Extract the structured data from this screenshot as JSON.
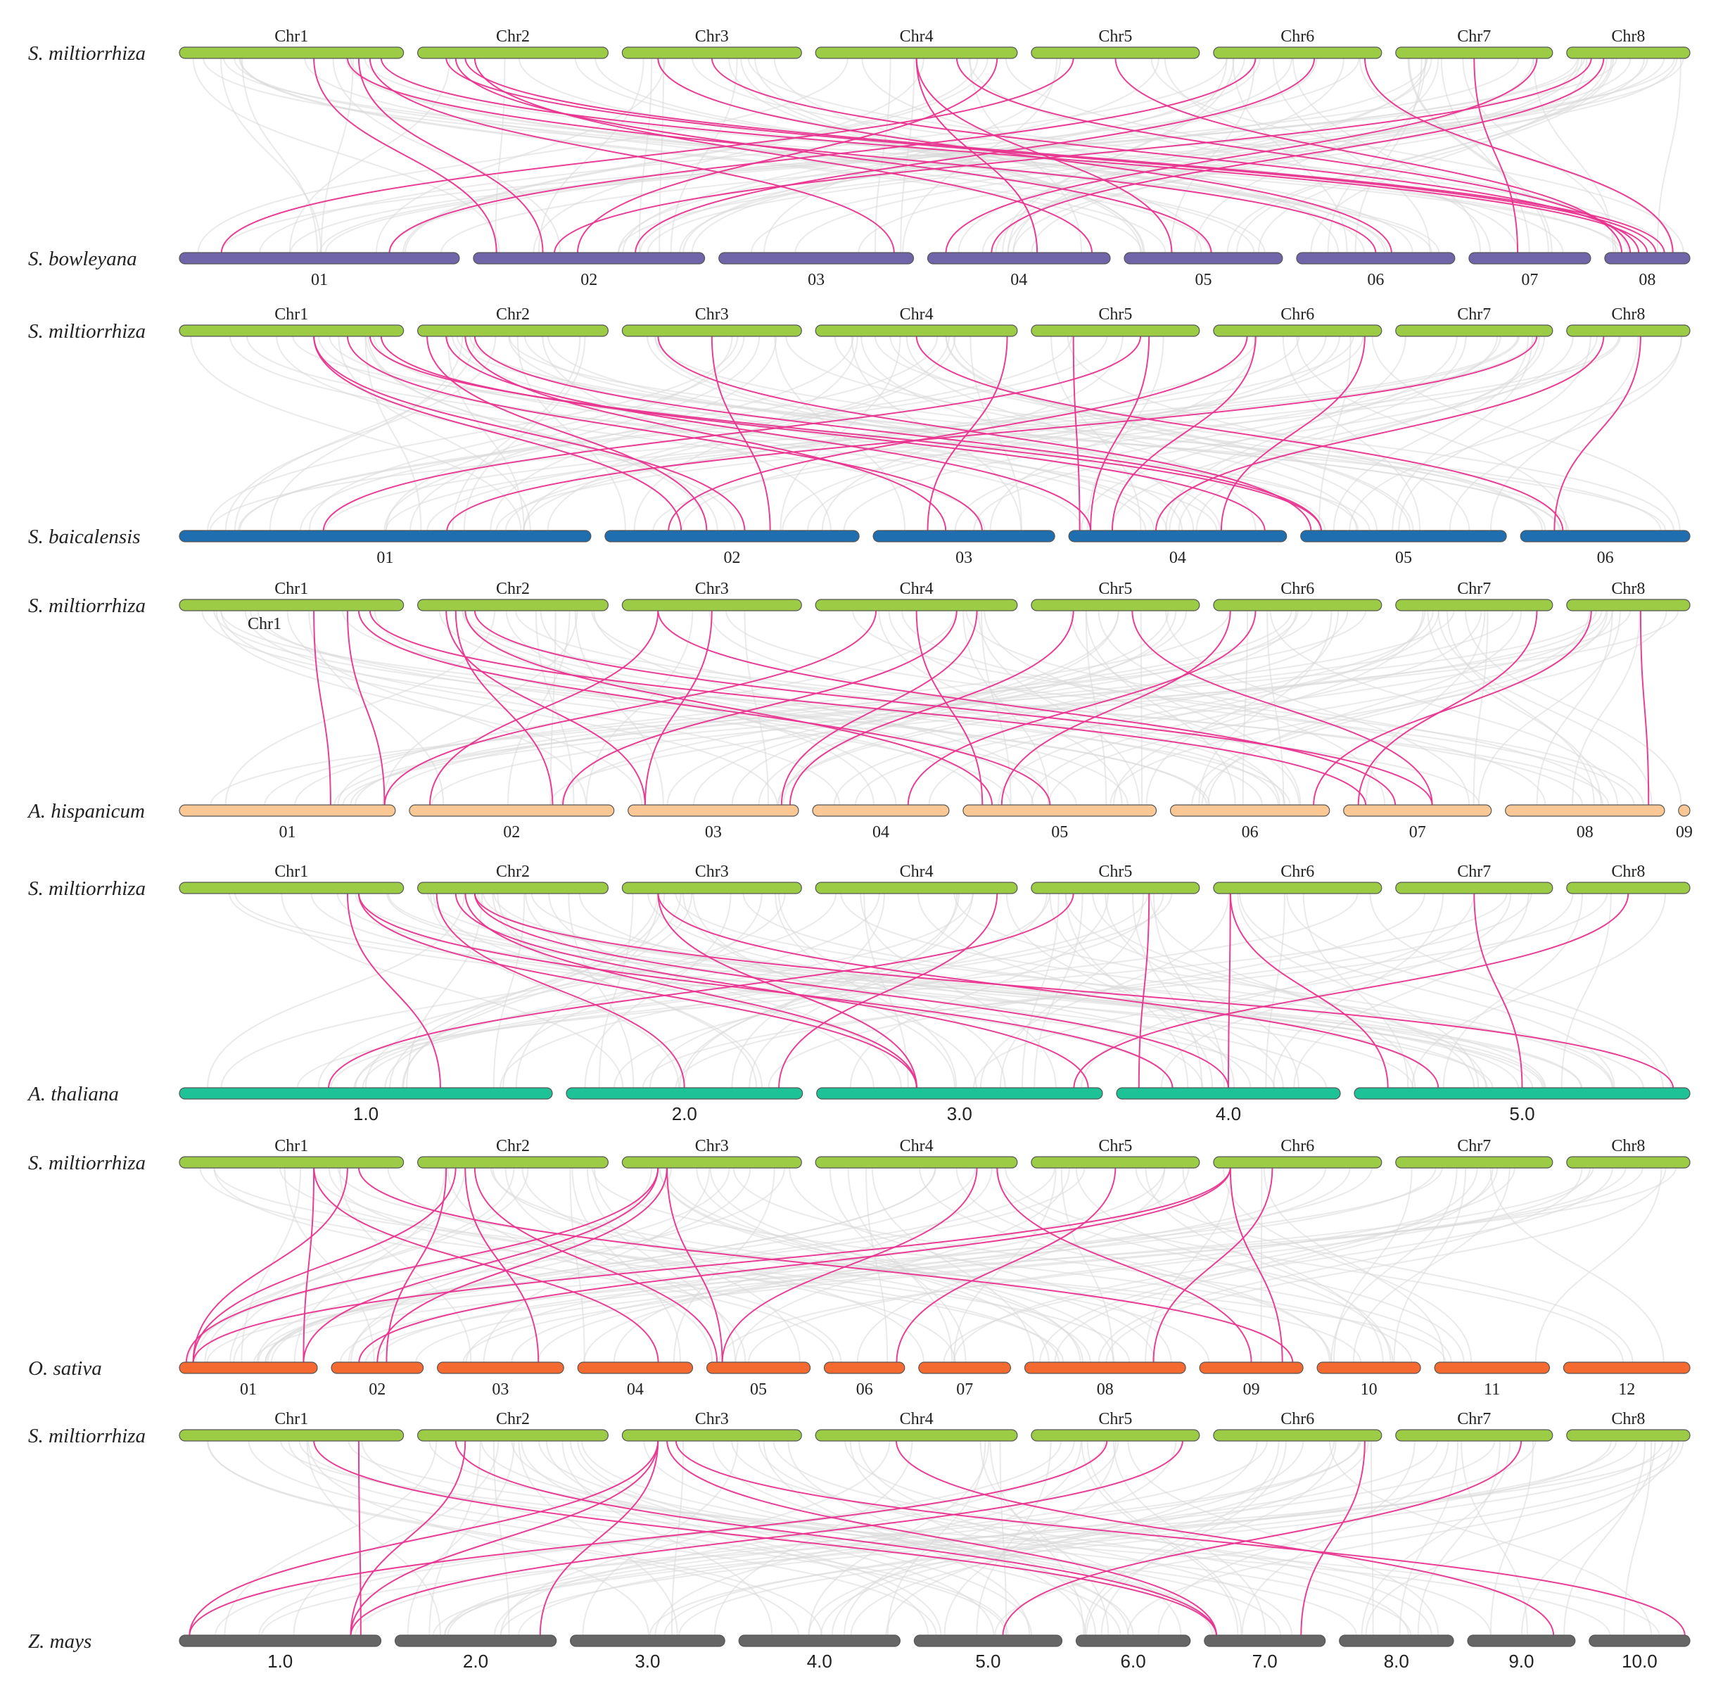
{
  "figure": {
    "reference_species": "S. miltiorrhiza",
    "colors": {
      "reference_bar": "#9ccc45",
      "background_link": "#d9d9d9",
      "highlight_link": "#e8348f"
    }
  },
  "panels": [
    {
      "reference_label": "S. miltiorrhiza",
      "reference_chromosomes": [
        {
          "name": "Chr1",
          "length": 20
        },
        {
          "name": "Chr2",
          "length": 17
        },
        {
          "name": "Chr3",
          "length": 16
        },
        {
          "name": "Chr4",
          "length": 18
        },
        {
          "name": "Chr5",
          "length": 15
        },
        {
          "name": "Chr6",
          "length": 15
        },
        {
          "name": "Chr7",
          "length": 14
        },
        {
          "name": "Chr8",
          "length": 11
        }
      ],
      "target_label": "S. bowleyana",
      "target_color": "#6f65a8",
      "label_font": "serif",
      "target_chromosomes": [
        {
          "name": "01",
          "length": 23
        },
        {
          "name": "02",
          "length": 19
        },
        {
          "name": "03",
          "length": 16
        },
        {
          "name": "04",
          "length": 15
        },
        {
          "name": "05",
          "length": 13
        },
        {
          "name": "06",
          "length": 13
        },
        {
          "name": "07",
          "length": 10
        },
        {
          "name": "08",
          "length": 7
        }
      ],
      "links": [
        [
          0,
          0.6,
          1,
          0.1
        ],
        [
          0,
          0.75,
          5,
          0.5
        ],
        [
          0,
          0.9,
          7,
          0.5
        ],
        [
          0,
          0.8,
          1,
          0.3
        ],
        [
          1,
          0.15,
          7,
          0.6
        ],
        [
          1,
          0.2,
          4,
          0.55
        ],
        [
          1,
          0.3,
          3,
          0.9
        ],
        [
          1,
          0.25,
          7,
          0.7
        ],
        [
          2,
          0.2,
          5,
          0.6
        ],
        [
          2,
          0.5,
          7,
          0.4
        ],
        [
          3,
          0.5,
          4,
          0.3
        ],
        [
          3,
          0.5,
          3,
          0.6
        ],
        [
          3,
          0.7,
          7,
          0.3
        ],
        [
          3,
          0.9,
          1,
          0.45
        ],
        [
          4,
          0.25,
          0,
          0.15
        ],
        [
          4,
          0.5,
          7,
          0.2
        ],
        [
          5,
          0.25,
          0,
          0.75
        ],
        [
          5,
          0.6,
          1,
          0.7
        ],
        [
          5,
          0.9,
          7,
          0.8
        ],
        [
          6,
          0.9,
          3,
          0.1
        ],
        [
          7,
          0.2,
          1,
          0.35
        ],
        [
          7,
          0.3,
          3,
          0.35
        ],
        [
          0,
          0.85,
          2,
          0.9
        ],
        [
          6,
          0.5,
          6,
          0.4
        ]
      ]
    },
    {
      "reference_label": "S. miltiorrhiza",
      "reference_chromosomes": [
        {
          "name": "Chr1",
          "length": 20
        },
        {
          "name": "Chr2",
          "length": 17
        },
        {
          "name": "Chr3",
          "length": 16
        },
        {
          "name": "Chr4",
          "length": 18
        },
        {
          "name": "Chr5",
          "length": 15
        },
        {
          "name": "Chr6",
          "length": 15
        },
        {
          "name": "Chr7",
          "length": 14
        },
        {
          "name": "Chr8",
          "length": 11
        }
      ],
      "target_label": "S. baicalensis",
      "target_color": "#1f6fb0",
      "label_font": "serif",
      "target_chromosomes": [
        {
          "name": "01",
          "length": 34
        },
        {
          "name": "02",
          "length": 21
        },
        {
          "name": "03",
          "length": 15
        },
        {
          "name": "04",
          "length": 18
        },
        {
          "name": "05",
          "length": 17
        },
        {
          "name": "06",
          "length": 14
        }
      ],
      "links": [
        [
          0,
          0.6,
          1,
          0.3
        ],
        [
          0,
          0.6,
          1,
          0.55
        ],
        [
          0,
          0.75,
          2,
          0.6
        ],
        [
          0,
          0.9,
          3,
          0.9
        ],
        [
          1,
          0.05,
          1,
          0.4
        ],
        [
          1,
          0.15,
          3,
          0.1
        ],
        [
          1,
          0.25,
          2,
          0.4
        ],
        [
          1,
          0.3,
          4,
          0.1
        ],
        [
          2,
          0.2,
          4,
          0.05
        ],
        [
          2,
          0.5,
          1,
          0.65
        ],
        [
          3,
          0.5,
          5,
          0.25
        ],
        [
          3,
          0.95,
          2,
          0.3
        ],
        [
          4,
          0.25,
          3,
          0.05
        ],
        [
          4,
          0.7,
          3,
          0.1
        ],
        [
          4,
          0.65,
          0,
          0.35
        ],
        [
          5,
          0.2,
          1,
          0.25
        ],
        [
          5,
          0.25,
          3,
          0.2
        ],
        [
          5,
          0.9,
          3,
          0.7
        ],
        [
          6,
          0.9,
          0,
          0.65
        ],
        [
          7,
          0.3,
          3,
          0.4
        ],
        [
          7,
          0.6,
          5,
          0.2
        ],
        [
          0,
          0.85,
          4,
          0.1
        ]
      ]
    },
    {
      "reference_label": "S. miltiorrhiza",
      "reference_chromosomes": [
        {
          "name": "Chr1",
          "length": 20
        },
        {
          "name": "Chr2",
          "length": 17
        },
        {
          "name": "Chr3",
          "length": 16
        },
        {
          "name": "Chr4",
          "length": 18
        },
        {
          "name": "Chr5",
          "length": 15
        },
        {
          "name": "Chr6",
          "length": 15
        },
        {
          "name": "Chr7",
          "length": 14
        },
        {
          "name": "Chr8",
          "length": 11
        }
      ],
      "extra_label": "Chr1",
      "target_label": "A. hispanicum",
      "target_color": "#fbc895",
      "label_font": "serif",
      "target_chromosomes": [
        {
          "name": "01",
          "length": 19
        },
        {
          "name": "02",
          "length": 18
        },
        {
          "name": "03",
          "length": 15
        },
        {
          "name": "04",
          "length": 12
        },
        {
          "name": "05",
          "length": 17
        },
        {
          "name": "06",
          "length": 14
        },
        {
          "name": "07",
          "length": 13
        },
        {
          "name": "08",
          "length": 14
        },
        {
          "name": "09",
          "length": 1
        }
      ],
      "links": [
        [
          0,
          0.6,
          0,
          0.7
        ],
        [
          0,
          0.75,
          0,
          0.95
        ],
        [
          0,
          0.8,
          4,
          0.45
        ],
        [
          0,
          0.85,
          6,
          0.15
        ],
        [
          1,
          0.15,
          2,
          0.1
        ],
        [
          1,
          0.2,
          1,
          0.7
        ],
        [
          1,
          0.25,
          4,
          0.15
        ],
        [
          2,
          0.2,
          6,
          0.35
        ],
        [
          2,
          0.5,
          2,
          0.1
        ],
        [
          2,
          0.2,
          1,
          0.1
        ],
        [
          3,
          0.3,
          0,
          0.95
        ],
        [
          3,
          0.7,
          1,
          0.75
        ],
        [
          3,
          0.8,
          2,
          0.9
        ],
        [
          4,
          0.25,
          2,
          0.95
        ],
        [
          4,
          0.6,
          6,
          0.6
        ],
        [
          5,
          0.25,
          3,
          0.7
        ],
        [
          5,
          0.1,
          4,
          0.2
        ],
        [
          6,
          0.9,
          6,
          0.1
        ],
        [
          7,
          0.2,
          5,
          0.9
        ],
        [
          7,
          0.6,
          7,
          0.9
        ],
        [
          3,
          0.5,
          4,
          0.1
        ],
        [
          1,
          0.3,
          6,
          0.6
        ]
      ]
    },
    {
      "reference_label": "S. miltiorrhiza",
      "reference_chromosomes": [
        {
          "name": "Chr1",
          "length": 20
        },
        {
          "name": "Chr2",
          "length": 17
        },
        {
          "name": "Chr3",
          "length": 16
        },
        {
          "name": "Chr4",
          "length": 18
        },
        {
          "name": "Chr5",
          "length": 15
        },
        {
          "name": "Chr6",
          "length": 15
        },
        {
          "name": "Chr7",
          "length": 14
        },
        {
          "name": "Chr8",
          "length": 11
        }
      ],
      "target_label": "A. thaliana",
      "target_color": "#1dc396",
      "label_font": "sans",
      "target_chromosomes": [
        {
          "name": "1.0",
          "length": 30
        },
        {
          "name": "2.0",
          "length": 19
        },
        {
          "name": "3.0",
          "length": 23
        },
        {
          "name": "4.0",
          "length": 18
        },
        {
          "name": "5.0",
          "length": 27
        }
      ],
      "links": [
        [
          0,
          0.75,
          0,
          0.7
        ],
        [
          0,
          0.8,
          2,
          0.35
        ],
        [
          0,
          0.8,
          3,
          0.25
        ],
        [
          1,
          0.1,
          1,
          0.5
        ],
        [
          1,
          0.25,
          2,
          0.35
        ],
        [
          1,
          0.3,
          3,
          0.5
        ],
        [
          1,
          0.3,
          4,
          0.95
        ],
        [
          2,
          0.2,
          2,
          0.35
        ],
        [
          2,
          0.2,
          4,
          0.25
        ],
        [
          4,
          0.25,
          0,
          0.4
        ],
        [
          4,
          0.7,
          3,
          0.1
        ],
        [
          5,
          0.1,
          3,
          0.5
        ],
        [
          5,
          0.1,
          4,
          0.1
        ],
        [
          6,
          0.5,
          4,
          0.5
        ],
        [
          7,
          0.5,
          2,
          0.9
        ],
        [
          3,
          0.9,
          1,
          0.9
        ],
        [
          1,
          0.2,
          2,
          0.95
        ]
      ]
    },
    {
      "reference_label": "S. miltiorrhiza",
      "reference_chromosomes": [
        {
          "name": "Chr1",
          "length": 20
        },
        {
          "name": "Chr2",
          "length": 17
        },
        {
          "name": "Chr3",
          "length": 16
        },
        {
          "name": "Chr4",
          "length": 18
        },
        {
          "name": "Chr5",
          "length": 15
        },
        {
          "name": "Chr6",
          "length": 15
        },
        {
          "name": "Chr7",
          "length": 14
        },
        {
          "name": "Chr8",
          "length": 11
        }
      ],
      "target_label": "O. sativa",
      "target_color": "#f46a30",
      "label_font": "serif",
      "target_chromosomes": [
        {
          "name": "01",
          "length": 12
        },
        {
          "name": "02",
          "length": 8
        },
        {
          "name": "03",
          "length": 11
        },
        {
          "name": "04",
          "length": 10
        },
        {
          "name": "05",
          "length": 9
        },
        {
          "name": "06",
          "length": 7
        },
        {
          "name": "07",
          "length": 8
        },
        {
          "name": "08",
          "length": 14
        },
        {
          "name": "09",
          "length": 9
        },
        {
          "name": "10",
          "length": 9
        },
        {
          "name": "11",
          "length": 10
        },
        {
          "name": "12",
          "length": 11
        }
      ],
      "links": [
        [
          0,
          0.6,
          0,
          0.9
        ],
        [
          0,
          0.75,
          0,
          0.1
        ],
        [
          0,
          0.6,
          3,
          0.7
        ],
        [
          0,
          0.8,
          8,
          0.9
        ],
        [
          1,
          0.15,
          1,
          0.6
        ],
        [
          1,
          0.2,
          0,
          0.1
        ],
        [
          1,
          0.25,
          2,
          0.8
        ],
        [
          1,
          0.3,
          4,
          0.1
        ],
        [
          2,
          0.2,
          0,
          0.05
        ],
        [
          2,
          0.2,
          0,
          0.9
        ],
        [
          2,
          0.25,
          1,
          0.5
        ],
        [
          2,
          0.25,
          4,
          0.15
        ],
        [
          3,
          0.8,
          4,
          0.15
        ],
        [
          4,
          0.5,
          5,
          0.9
        ],
        [
          5,
          0.1,
          0,
          0.1
        ],
        [
          5,
          0.1,
          1,
          0.3
        ],
        [
          5,
          0.1,
          8,
          0.8
        ],
        [
          5,
          0.35,
          7,
          0.8
        ],
        [
          3,
          0.9,
          8,
          0.5
        ]
      ]
    },
    {
      "reference_label": "S. miltiorrhiza",
      "reference_chromosomes": [
        {
          "name": "Chr1",
          "length": 20
        },
        {
          "name": "Chr2",
          "length": 17
        },
        {
          "name": "Chr3",
          "length": 16
        },
        {
          "name": "Chr4",
          "length": 18
        },
        {
          "name": "Chr5",
          "length": 15
        },
        {
          "name": "Chr6",
          "length": 15
        },
        {
          "name": "Chr7",
          "length": 14
        },
        {
          "name": "Chr8",
          "length": 11
        }
      ],
      "target_label": "Z. mays",
      "target_color": "#666666",
      "label_font": "sans",
      "target_chromosomes": [
        {
          "name": "1.0",
          "length": 30
        },
        {
          "name": "2.0",
          "length": 24
        },
        {
          "name": "3.0",
          "length": 23
        },
        {
          "name": "4.0",
          "length": 24
        },
        {
          "name": "5.0",
          "length": 22
        },
        {
          "name": "6.0",
          "length": 17
        },
        {
          "name": "7.0",
          "length": 18
        },
        {
          "name": "8.0",
          "length": 17
        },
        {
          "name": "9.0",
          "length": 16
        },
        {
          "name": "10.0",
          "length": 15
        }
      ],
      "links": [
        [
          0,
          0.6,
          6,
          0.1
        ],
        [
          0,
          0.8,
          0,
          0.9
        ],
        [
          1,
          0.25,
          0,
          0.85
        ],
        [
          1,
          0.2,
          6,
          0.1
        ],
        [
          2,
          0.2,
          0,
          0.05
        ],
        [
          2,
          0.2,
          0,
          0.85
        ],
        [
          2,
          0.25,
          6,
          0.1
        ],
        [
          2,
          0.2,
          1,
          0.9
        ],
        [
          4,
          0.45,
          0,
          0.05
        ],
        [
          4,
          0.9,
          0,
          0.85
        ],
        [
          6,
          0.8,
          4,
          0.6
        ],
        [
          5,
          0.9,
          6,
          0.8
        ],
        [
          2,
          0.3,
          9,
          0.95
        ],
        [
          3,
          0.4,
          8,
          0.8
        ]
      ]
    }
  ]
}
